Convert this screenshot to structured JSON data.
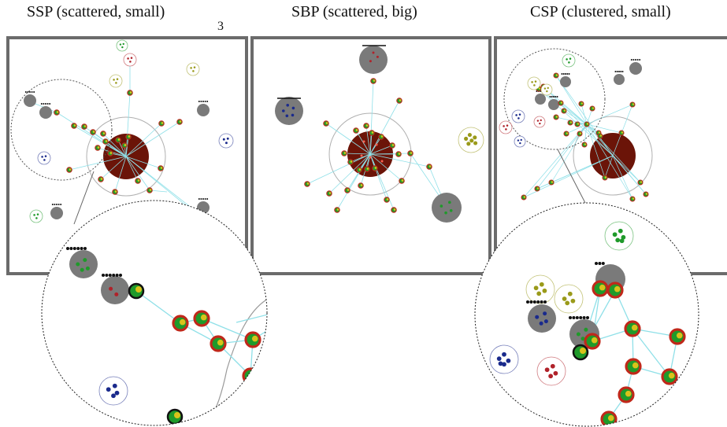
{
  "figure": {
    "page_number": "3",
    "panels": [
      {
        "id": "ssp",
        "title": "SSP (scattered, small)"
      },
      {
        "id": "sbp",
        "title": "SBP (scattered, big)"
      },
      {
        "id": "csp",
        "title": "CSP (clustered, small)"
      }
    ]
  },
  "colors": {
    "frame": "#6b6b6b",
    "central_node": "#6b1408",
    "gray_node": "#7a7a7a",
    "edge": "#8fe0e8",
    "ring_red": "#c0281a",
    "leaf_green": "#1f9a2a",
    "leaf_yellow": "#d9c21a",
    "dot_green": "#1f9a2a",
    "dot_red": "#b0222a",
    "dot_blue": "#1a2a8c",
    "dot_olive": "#9a9a1a",
    "magnifier_border": "#222222"
  }
}
